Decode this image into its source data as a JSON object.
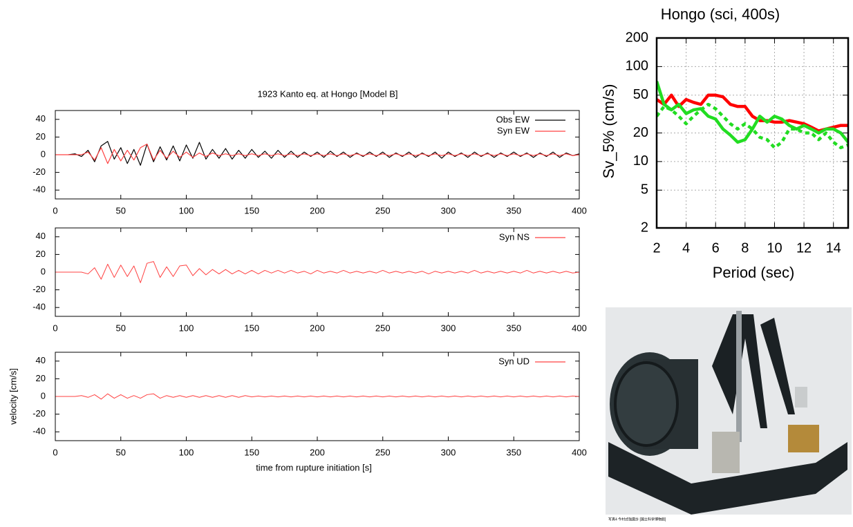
{
  "chart_data": [
    {
      "type": "line",
      "title": "1923 Kanto eq. at Hongo [Model B]",
      "x": [
        0,
        5,
        10,
        15,
        20,
        25,
        30,
        35,
        40,
        45,
        50,
        55,
        60,
        65,
        70,
        75,
        80,
        85,
        90,
        95,
        100,
        105,
        110,
        115,
        120,
        125,
        130,
        135,
        140,
        145,
        150,
        155,
        160,
        165,
        170,
        175,
        180,
        185,
        190,
        195,
        200,
        205,
        210,
        215,
        220,
        225,
        230,
        235,
        240,
        245,
        250,
        255,
        260,
        265,
        270,
        275,
        280,
        285,
        290,
        295,
        300,
        305,
        310,
        315,
        320,
        325,
        330,
        335,
        340,
        345,
        350,
        355,
        360,
        365,
        370,
        375,
        380,
        385,
        390,
        395,
        400
      ],
      "series": [
        {
          "name": "Obs EW",
          "color": "#000000",
          "values": [
            null,
            null,
            0,
            1,
            -2,
            5,
            -8,
            10,
            15,
            -5,
            8,
            -10,
            6,
            -12,
            12,
            -8,
            9,
            -6,
            10,
            -7,
            11,
            -4,
            14,
            -5,
            6,
            -4,
            7,
            -5,
            5,
            -4,
            6,
            -3,
            4,
            -4,
            5,
            -3,
            4,
            -3,
            3,
            -2,
            3,
            -3,
            4,
            -2,
            3,
            -3,
            2,
            -2,
            3,
            -2,
            3,
            -3,
            2,
            -2,
            3,
            -3,
            2,
            -2,
            3,
            -4,
            3,
            -2,
            2,
            -3,
            3,
            -2,
            2,
            -3,
            2,
            -2,
            3,
            -2,
            2,
            -3,
            2,
            -2,
            3,
            -3,
            2,
            -1,
            1
          ]
        },
        {
          "name": "Syn EW",
          "color": "#ff4040",
          "values": [
            0,
            0,
            0,
            0,
            0,
            3,
            -6,
            8,
            -10,
            6,
            -7,
            5,
            -6,
            8,
            12,
            -6,
            5,
            -4,
            4,
            -3,
            3,
            -3,
            2,
            -2,
            2,
            -1,
            1,
            -1,
            1,
            -1,
            1,
            -1,
            1,
            -1,
            1,
            -1,
            1,
            -1,
            1,
            -1,
            1,
            -1,
            1,
            -1,
            1,
            -1,
            1,
            -1,
            1,
            -1,
            1,
            -1,
            1,
            -1,
            1,
            -1,
            1,
            -1,
            1,
            -1,
            1,
            -1,
            1,
            -1,
            1,
            -1,
            1,
            -1,
            1,
            -1,
            1,
            -1,
            1,
            -1,
            1,
            -1,
            1,
            -1,
            1,
            -1,
            0
          ]
        }
      ],
      "xlim": [
        0,
        400
      ],
      "xticks": [
        0,
        50,
        100,
        150,
        200,
        250,
        300,
        350,
        400
      ],
      "ylim": [
        -50,
        50
      ],
      "yticks": [
        -40,
        -20,
        0,
        20,
        40
      ],
      "legend": "top-right"
    },
    {
      "type": "line",
      "x": [
        0,
        5,
        10,
        15,
        20,
        25,
        30,
        35,
        40,
        45,
        50,
        55,
        60,
        65,
        70,
        75,
        80,
        85,
        90,
        95,
        100,
        105,
        110,
        115,
        120,
        125,
        130,
        135,
        140,
        145,
        150,
        155,
        160,
        165,
        170,
        175,
        180,
        185,
        190,
        195,
        200,
        205,
        210,
        215,
        220,
        225,
        230,
        235,
        240,
        245,
        250,
        255,
        260,
        265,
        270,
        275,
        280,
        285,
        290,
        295,
        300,
        305,
        310,
        315,
        320,
        325,
        330,
        335,
        340,
        345,
        350,
        355,
        360,
        365,
        370,
        375,
        380,
        385,
        390,
        395,
        400
      ],
      "series": [
        {
          "name": "Syn NS",
          "color": "#ff4040",
          "values": [
            0,
            0,
            0,
            0,
            0,
            -2,
            5,
            -8,
            9,
            -6,
            8,
            -5,
            7,
            -12,
            10,
            12,
            -6,
            6,
            -5,
            7,
            8,
            -4,
            4,
            -3,
            3,
            -2,
            3,
            -2,
            2,
            -2,
            2,
            -2,
            2,
            -1,
            2,
            -1,
            2,
            -1,
            1,
            -2,
            2,
            -1,
            1,
            -1,
            2,
            -1,
            1,
            -1,
            1,
            -1,
            2,
            -1,
            1,
            -1,
            1,
            -1,
            1,
            -2,
            1,
            -1,
            1,
            -1,
            1,
            -1,
            2,
            -1,
            1,
            -1,
            1,
            -1,
            1,
            -1,
            2,
            -1,
            1,
            -1,
            1,
            -1,
            1,
            -1,
            0
          ]
        }
      ],
      "xlim": [
        0,
        400
      ],
      "xticks": [
        0,
        50,
        100,
        150,
        200,
        250,
        300,
        350,
        400
      ],
      "ylim": [
        -50,
        50
      ],
      "yticks": [
        -40,
        -20,
        0,
        20,
        40
      ],
      "legend": "top-right"
    },
    {
      "type": "line",
      "x_label": "time from rupture initiation [s]",
      "y_label": "velocity [cm/s]",
      "x": [
        0,
        5,
        10,
        15,
        20,
        25,
        30,
        35,
        40,
        45,
        50,
        55,
        60,
        65,
        70,
        75,
        80,
        85,
        90,
        95,
        100,
        105,
        110,
        115,
        120,
        125,
        130,
        135,
        140,
        145,
        150,
        155,
        160,
        165,
        170,
        175,
        180,
        185,
        190,
        195,
        200,
        205,
        210,
        215,
        220,
        225,
        230,
        235,
        240,
        245,
        250,
        255,
        260,
        265,
        270,
        275,
        280,
        285,
        290,
        295,
        300,
        305,
        310,
        315,
        320,
        325,
        330,
        335,
        340,
        345,
        350,
        355,
        360,
        365,
        370,
        375,
        380,
        385,
        390,
        395,
        400
      ],
      "series": [
        {
          "name": "Syn UD",
          "color": "#ff4040",
          "values": [
            0,
            0,
            0,
            0,
            1,
            -1,
            2,
            -3,
            3,
            -2,
            2,
            -2,
            1,
            -2,
            2,
            3,
            -2,
            1,
            -1,
            1,
            -1,
            1,
            -1,
            1,
            -1,
            1,
            -1,
            1,
            -1,
            1,
            -0.5,
            0.5,
            -0.5,
            0.5,
            -0.5,
            0.5,
            -0.5,
            0.5,
            -0.5,
            0.5,
            -0.5,
            0.5,
            -0.5,
            0.5,
            -0.5,
            0.5,
            -0.5,
            0.5,
            -0.5,
            0.5,
            -0.5,
            0.5,
            -0.5,
            0.5,
            -0.5,
            0.5,
            -0.5,
            0.5,
            -0.5,
            0.5,
            -0.5,
            0.5,
            -0.5,
            0.5,
            -0.5,
            0.5,
            -0.5,
            0.5,
            -0.5,
            0.5,
            -0.5,
            0.5,
            -0.5,
            0.5,
            -0.5,
            0.5,
            -0.5,
            0.5,
            -0.5,
            0.5,
            0
          ]
        }
      ],
      "xlim": [
        0,
        400
      ],
      "xticks": [
        0,
        50,
        100,
        150,
        200,
        250,
        300,
        350,
        400
      ],
      "ylim": [
        -50,
        50
      ],
      "yticks": [
        -40,
        -20,
        0,
        20,
        40
      ],
      "legend": "top-right"
    },
    {
      "type": "line",
      "title": "Hongo (sci, 400s)",
      "x_label": "Period (sec)",
      "y_label": "Sv_5% (cm/s)",
      "x": [
        2,
        2.5,
        3,
        3.5,
        4,
        4.5,
        5,
        5.5,
        6,
        6.5,
        7,
        7.5,
        8,
        8.5,
        9,
        9.5,
        10,
        10.5,
        11,
        11.5,
        12,
        12.5,
        13,
        13.5,
        14,
        14.5,
        15
      ],
      "series": [
        {
          "color": "#ff0000",
          "style": "solid",
          "values": [
            45,
            40,
            50,
            38,
            45,
            42,
            40,
            50,
            50,
            48,
            40,
            38,
            38,
            30,
            27,
            27,
            26,
            26,
            27,
            26,
            25,
            23,
            21,
            22,
            23,
            24,
            24
          ]
        },
        {
          "color": "#22dd22",
          "style": "solid",
          "values": [
            70,
            40,
            35,
            40,
            32,
            35,
            36,
            30,
            28,
            22,
            19,
            16,
            17,
            22,
            30,
            26,
            30,
            28,
            24,
            22,
            24,
            22,
            20,
            22,
            22,
            20,
            16
          ]
        },
        {
          "color": "#22dd22",
          "style": "dotted",
          "values": [
            30,
            38,
            35,
            30,
            25,
            30,
            35,
            40,
            36,
            30,
            25,
            22,
            25,
            22,
            18,
            17,
            14,
            16,
            22,
            22,
            20,
            20,
            17,
            20,
            16,
            14,
            15
          ]
        }
      ],
      "xlim": [
        2,
        15
      ],
      "xticks": [
        2,
        4,
        6,
        8,
        10,
        12,
        14
      ],
      "ylim": [
        2,
        200
      ],
      "yticks": [
        2,
        5,
        10,
        20,
        50,
        100,
        200
      ],
      "log_y": true,
      "grid": true
    }
  ],
  "photo": {
    "caption": "写真4 今村式強震計 [国立科学博物館]"
  }
}
